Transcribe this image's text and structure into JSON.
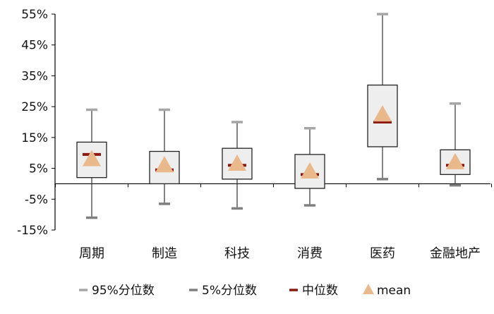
{
  "chart_data": {
    "type": "box",
    "categories": [
      "周期",
      "制造",
      "科技",
      "消费",
      "医药",
      "金融地产"
    ],
    "y_ticks": [
      "55%",
      "45%",
      "35%",
      "25%",
      "15%",
      "5%",
      "-5%",
      "-15%"
    ],
    "y_tick_values": [
      55,
      45,
      35,
      25,
      15,
      5,
      -5,
      -15
    ],
    "ylim": [
      -15,
      55
    ],
    "series": [
      {
        "category": "周期",
        "p95": 24,
        "p5": -11,
        "q3": 13.5,
        "q1": 2,
        "median": 9.5,
        "mean": 8
      },
      {
        "category": "制造",
        "p95": 24,
        "p5": -6.5,
        "q3": 10.5,
        "q1": 0,
        "median": 4.5,
        "mean": 6
      },
      {
        "category": "科技",
        "p95": 20,
        "p5": -8,
        "q3": 11.5,
        "q1": 1.5,
        "median": 6,
        "mean": 6.5
      },
      {
        "category": "消费",
        "p95": 18,
        "p5": -7,
        "q3": 9.5,
        "q1": -1.5,
        "median": 3,
        "mean": 4
      },
      {
        "category": "医药",
        "p95": 55,
        "p5": 1.5,
        "q3": 32,
        "q1": 12,
        "median": 20,
        "mean": 22.5
      },
      {
        "category": "金融地产",
        "p95": 26,
        "p5": -0.5,
        "q3": 11,
        "q1": 3,
        "median": 6,
        "mean": 7
      }
    ],
    "legend": [
      {
        "key": "p95",
        "label": "95%分位数"
      },
      {
        "key": "p5",
        "label": "5%分位数"
      },
      {
        "key": "median",
        "label": "中位数"
      },
      {
        "key": "mean",
        "label": "mean"
      }
    ],
    "legend_position": "bottom",
    "grid": false,
    "colors": {
      "p95": "#a6a6a6",
      "p5": "#7f7f7f",
      "median": "#8b1a10",
      "mean": "#e9b98b",
      "box_fill": "#eeeeee",
      "box_stroke": "#222222",
      "axis": "#000000"
    }
  }
}
